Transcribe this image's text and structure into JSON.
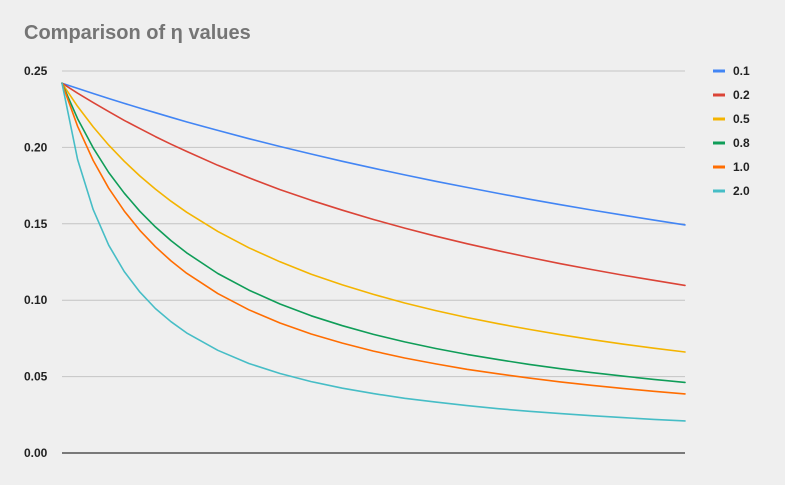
{
  "chart_data": {
    "type": "line",
    "title": "Comparison of η values",
    "xlabel": "",
    "ylabel": "",
    "xlim": [
      0,
      1
    ],
    "ylim": [
      0,
      0.25
    ],
    "y_ticks": [
      "0.00",
      "0.05",
      "0.10",
      "0.15",
      "0.20",
      "0.25"
    ],
    "grid": true,
    "legend_position": "right",
    "x": [
      0,
      0.025,
      0.05,
      0.075,
      0.1,
      0.125,
      0.15,
      0.175,
      0.2,
      0.25,
      0.3,
      0.35,
      0.4,
      0.45,
      0.5,
      0.55,
      0.6,
      0.65,
      0.7,
      0.75,
      0.8,
      0.85,
      0.9,
      0.95,
      1.0
    ],
    "series": [
      {
        "name": "0.1",
        "color": "#4285f4",
        "values": [
          0.242,
          0.2386,
          0.2353,
          0.232,
          0.2288,
          0.2257,
          0.2227,
          0.2197,
          0.2167,
          0.2111,
          0.2057,
          0.2006,
          0.1957,
          0.1909,
          0.1864,
          0.182,
          0.1778,
          0.1738,
          0.1699,
          0.1661,
          0.1625,
          0.159,
          0.1557,
          0.1524,
          0.1493
        ]
      },
      {
        "name": "0.2",
        "color": "#db4437",
        "values": [
          0.242,
          0.2355,
          0.2293,
          0.2234,
          0.2177,
          0.2123,
          0.2071,
          0.2021,
          0.1974,
          0.1883,
          0.1801,
          0.1724,
          0.1654,
          0.1589,
          0.1528,
          0.1472,
          0.1419,
          0.137,
          0.1324,
          0.128,
          0.1239,
          0.1201,
          0.1164,
          0.113,
          0.1097
        ]
      },
      {
        "name": "0.5",
        "color": "#f4b400",
        "values": [
          0.242,
          0.2268,
          0.2134,
          0.2015,
          0.1909,
          0.1813,
          0.1727,
          0.1648,
          0.1576,
          0.145,
          0.1343,
          0.1251,
          0.117,
          0.11,
          0.1038,
          0.0982,
          0.0932,
          0.0887,
          0.0846,
          0.0809,
          0.0774,
          0.0742,
          0.0713,
          0.0686,
          0.0661
        ]
      },
      {
        "name": "0.8",
        "color": "#0f9d58",
        "values": [
          0.242,
          0.2188,
          0.1997,
          0.1836,
          0.17,
          0.1582,
          0.148,
          0.139,
          0.131,
          0.1175,
          0.1066,
          0.0975,
          0.0898,
          0.0833,
          0.0776,
          0.0727,
          0.0684,
          0.0645,
          0.0611,
          0.058,
          0.0552,
          0.0526,
          0.0503,
          0.0482,
          0.0462
        ]
      },
      {
        "name": "1.0",
        "color": "#ff6d01",
        "values": [
          0.242,
          0.2138,
          0.1914,
          0.1733,
          0.1583,
          0.1457,
          0.135,
          0.1257,
          0.1177,
          0.1043,
          0.0937,
          0.0851,
          0.0779,
          0.0719,
          0.0667,
          0.0622,
          0.0583,
          0.0548,
          0.0518,
          0.049,
          0.0465,
          0.0443,
          0.0423,
          0.0404,
          0.0387
        ]
      },
      {
        "name": "2.0",
        "color": "#46bdc6",
        "values": [
          0.242,
          0.1921,
          0.1593,
          0.136,
          0.1187,
          0.1053,
          0.0946,
          0.0859,
          0.0786,
          0.0672,
          0.0586,
          0.052,
          0.0467,
          0.0424,
          0.0389,
          0.0358,
          0.0333,
          0.031,
          0.029,
          0.0273,
          0.0258,
          0.0244,
          0.0232,
          0.022,
          0.021
        ]
      }
    ]
  }
}
